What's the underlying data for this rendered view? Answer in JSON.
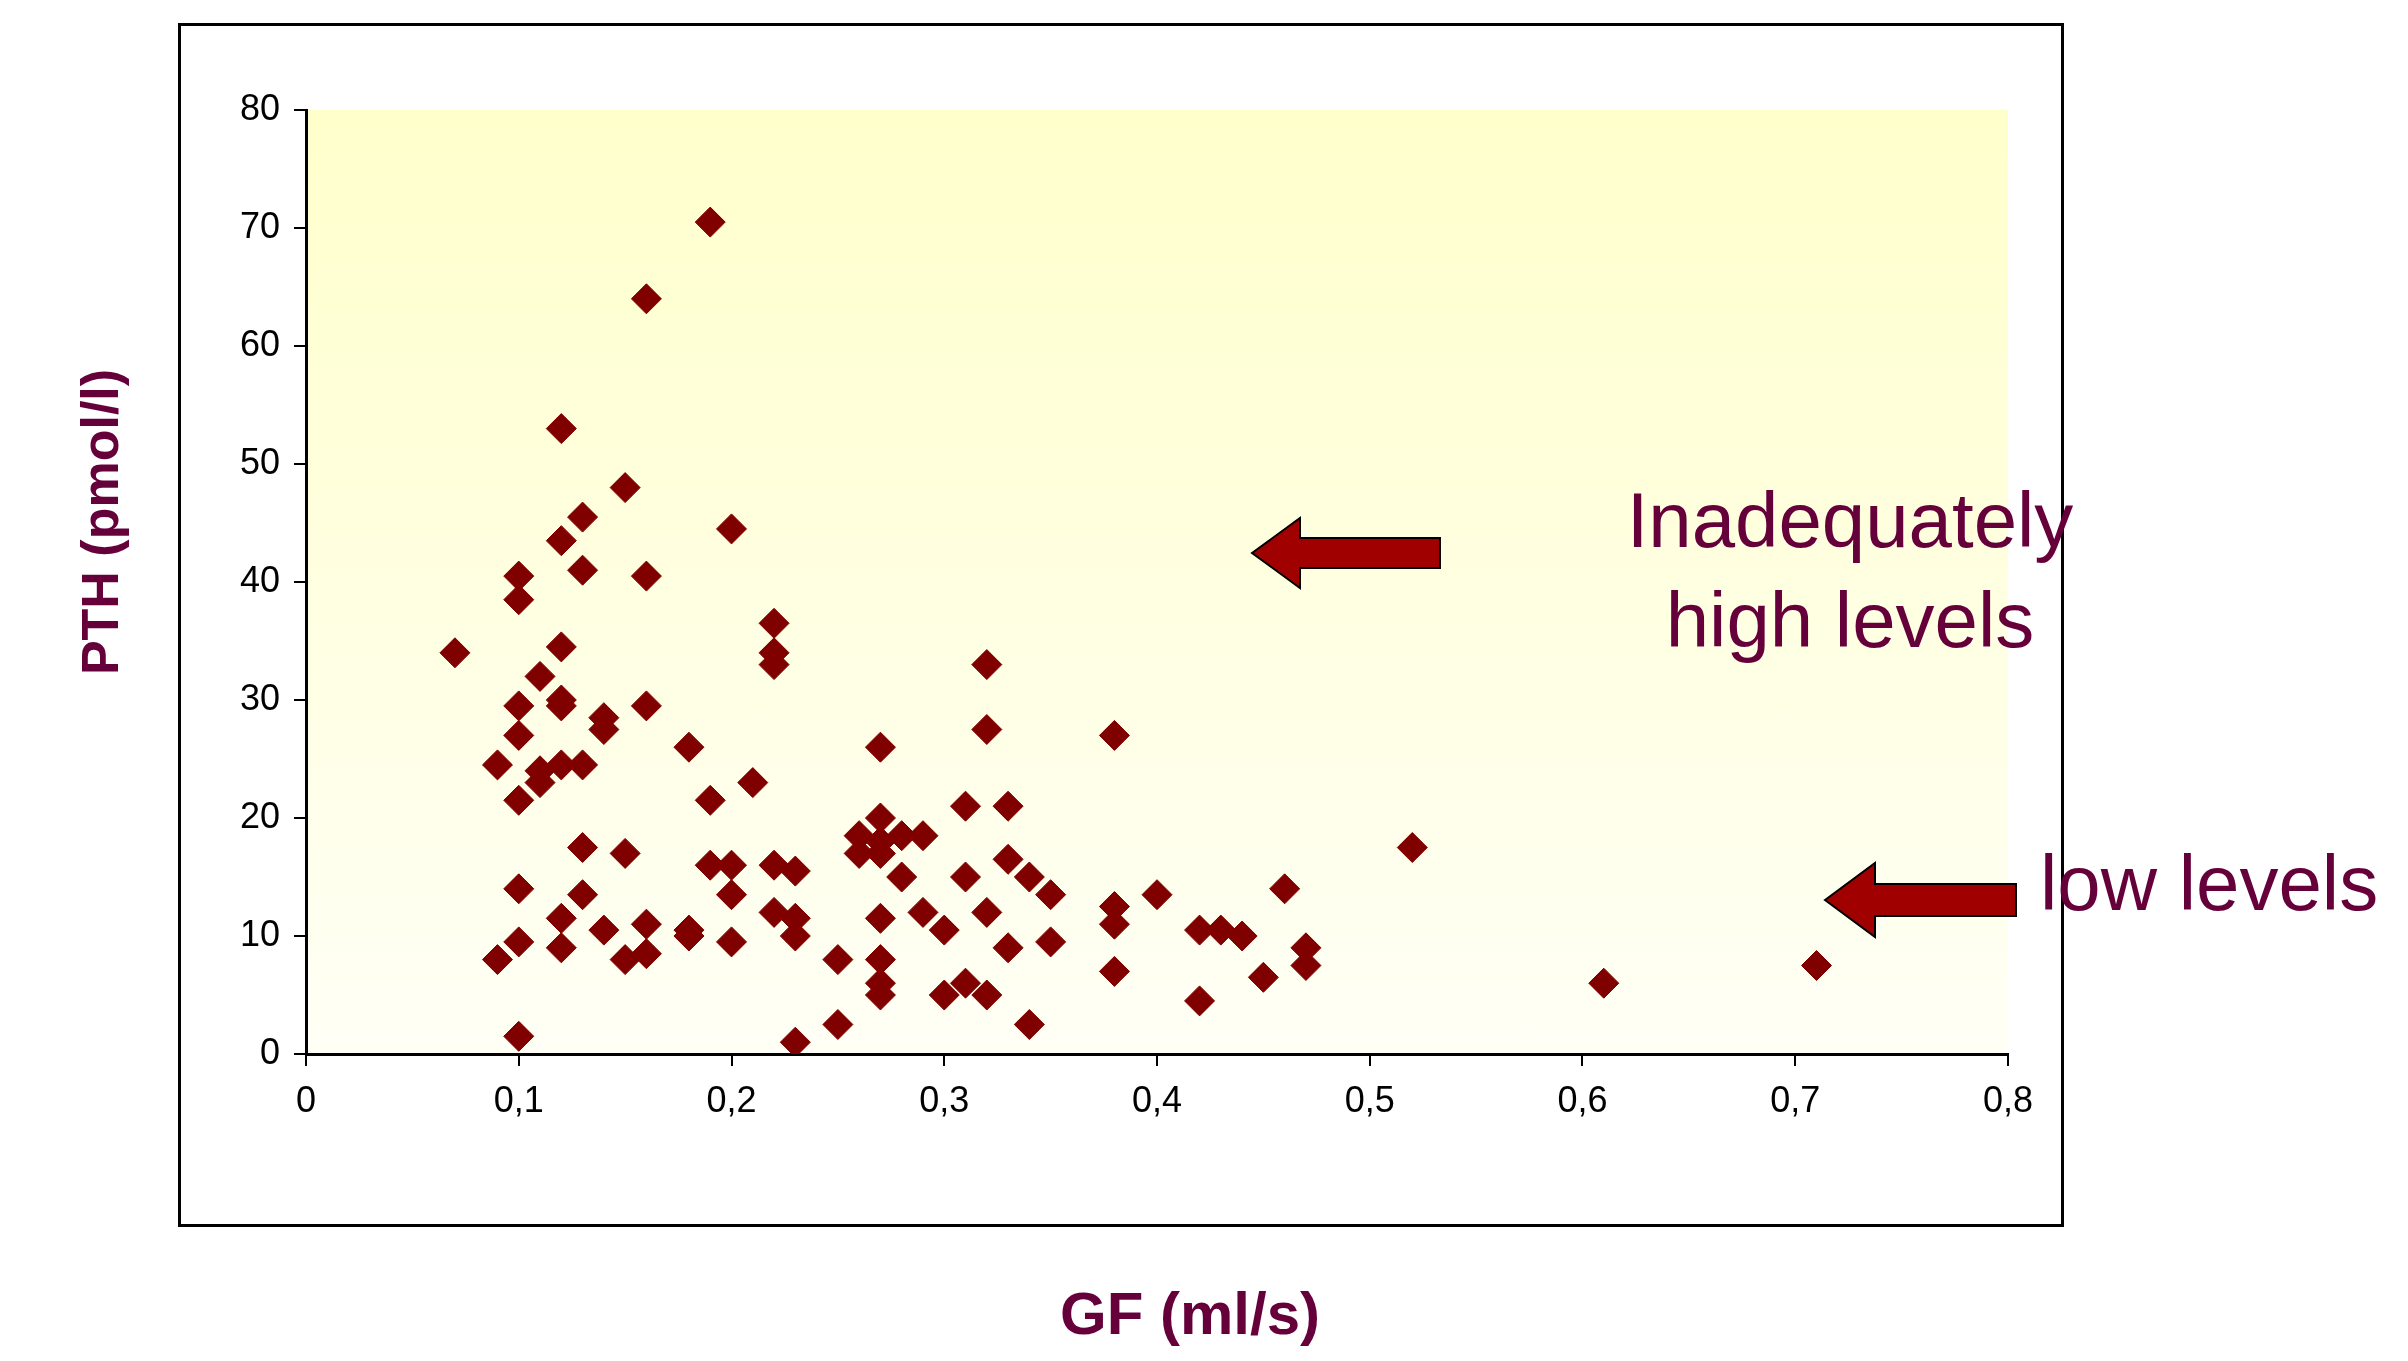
{
  "chart_data": {
    "type": "scatter",
    "xlabel": "GF (ml/s)",
    "ylabel": "PTH (pmol/l)",
    "annotations": [
      "Inadequately high levels",
      "low levels"
    ],
    "xlim": [
      0,
      0.8
    ],
    "ylim": [
      0,
      80
    ],
    "xticks": [
      0,
      {
        "value": 0.1,
        "label": "0,1"
      },
      {
        "value": 0.2,
        "label": "0,2"
      },
      {
        "value": 0.3,
        "label": "0,3"
      },
      {
        "value": 0.4,
        "label": "0,4"
      },
      {
        "value": 0.5,
        "label": "0,5"
      },
      {
        "value": 0.6,
        "label": "0,6"
      },
      {
        "value": 0.7,
        "label": "0,7"
      },
      {
        "value": 0.8,
        "label": "0,8"
      }
    ],
    "yticks": [
      0,
      10,
      20,
      30,
      40,
      50,
      60,
      70,
      80
    ],
    "grid": false,
    "legend": false,
    "marker": "diamond",
    "series": [
      {
        "color": "#800000",
        "x": [
          0.07,
          0.09,
          0.09,
          0.1,
          0.1,
          0.1,
          0.1,
          0.1,
          0.1,
          0.1,
          0.1,
          0.11,
          0.11,
          0.11,
          0.12,
          0.12,
          0.12,
          0.12,
          0.12,
          0.12,
          0.12,
          0.12,
          0.13,
          0.13,
          0.13,
          0.13,
          0.13,
          0.14,
          0.14,
          0.14,
          0.15,
          0.15,
          0.15,
          0.16,
          0.16,
          0.16,
          0.16,
          0.16,
          0.18,
          0.18,
          0.18,
          0.19,
          0.19,
          0.19,
          0.2,
          0.2,
          0.2,
          0.2,
          0.21,
          0.22,
          0.22,
          0.22,
          0.22,
          0.22,
          0.23,
          0.23,
          0.23,
          0.23,
          0.25,
          0.25,
          0.26,
          0.26,
          0.27,
          0.27,
          0.27,
          0.27,
          0.27,
          0.27,
          0.27,
          0.27,
          0.28,
          0.28,
          0.29,
          0.29,
          0.3,
          0.3,
          0.31,
          0.31,
          0.31,
          0.32,
          0.32,
          0.32,
          0.32,
          0.33,
          0.33,
          0.33,
          0.34,
          0.34,
          0.35,
          0.35,
          0.38,
          0.38,
          0.38,
          0.38,
          0.4,
          0.42,
          0.42,
          0.43,
          0.44,
          0.45,
          0.46,
          0.47,
          0.47,
          0.52,
          0.61,
          0.71
        ],
        "values": [
          34,
          24.5,
          8,
          40.5,
          38.5,
          29.5,
          27,
          21.5,
          14,
          9.5,
          1.5,
          32,
          24,
          23,
          53,
          43.5,
          34.5,
          30,
          29.5,
          24.5,
          11.5,
          9,
          45.5,
          41,
          24.5,
          17.5,
          13.5,
          28.5,
          27.5,
          10.5,
          48,
          17,
          8,
          64,
          40.5,
          29.5,
          11,
          8.5,
          26,
          10.5,
          10,
          70.5,
          21.5,
          16,
          44.5,
          16,
          13.5,
          9.5,
          23,
          36.5,
          34,
          33,
          16,
          12,
          15.5,
          11.5,
          10,
          1,
          8,
          2.5,
          18.5,
          17,
          26,
          20,
          18,
          17,
          11.5,
          8,
          6,
          5,
          18.5,
          15,
          18.5,
          12,
          10.5,
          5,
          21,
          15,
          6,
          33,
          27.5,
          12,
          5,
          21,
          16.5,
          9,
          15,
          2.5,
          13.5,
          9.5,
          27,
          12.5,
          11,
          7,
          13.5,
          10.5,
          4.5,
          10.5,
          10,
          6.5,
          14,
          9,
          7.5,
          17.5,
          6,
          7.5
        ]
      }
    ]
  }
}
